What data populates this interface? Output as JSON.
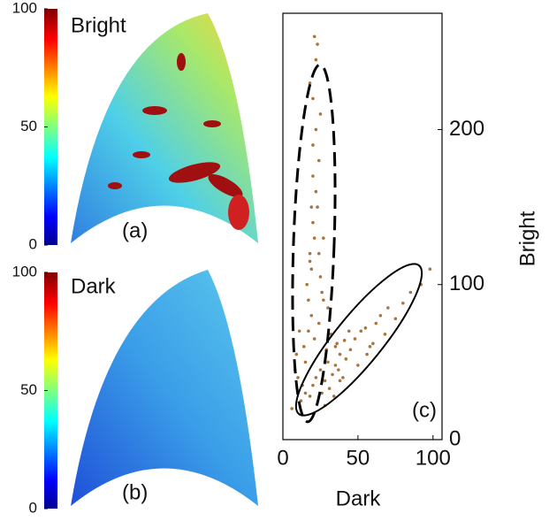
{
  "chart_data": [
    {
      "type": "heatmap",
      "label": "Bright",
      "panel_label": "(a)",
      "clim": [
        0,
        100
      ],
      "cticks": [
        0,
        50,
        100
      ]
    },
    {
      "type": "heatmap",
      "label": "Dark",
      "panel_label": "(b)",
      "clim": [
        0,
        100
      ],
      "cticks": [
        0,
        50,
        100
      ]
    },
    {
      "type": "scatter",
      "panel_label": "(c)",
      "xlabel": "Dark",
      "ylabel": "Bright",
      "color": "#a8753f",
      "xlim": [
        0,
        106
      ],
      "ylim": [
        0,
        275
      ],
      "xticks": [
        0,
        50,
        100
      ],
      "yticks": [
        0,
        100,
        200
      ],
      "x": [
        12,
        15,
        18,
        20,
        22,
        25,
        28,
        30,
        33,
        35,
        38,
        40,
        14,
        17,
        19,
        21,
        24,
        27,
        29,
        32,
        36,
        42,
        45,
        48,
        52,
        55,
        58,
        62,
        65,
        70,
        75,
        80,
        85,
        92,
        98,
        16,
        18,
        20,
        22,
        24,
        19,
        21,
        23,
        17,
        20,
        22,
        25,
        18,
        20,
        23,
        21,
        19,
        24,
        26,
        15,
        13,
        10,
        8,
        30,
        35,
        44,
        50,
        56,
        60,
        68,
        26,
        28,
        31,
        34,
        37,
        22,
        20,
        18,
        25,
        27,
        6,
        9,
        11,
        38,
        41
      ],
      "y": [
        25,
        30,
        28,
        35,
        40,
        45,
        38,
        50,
        42,
        48,
        55,
        40,
        60,
        70,
        80,
        65,
        75,
        90,
        58,
        68,
        62,
        52,
        58,
        65,
        70,
        72,
        60,
        75,
        80,
        85,
        78,
        88,
        95,
        100,
        110,
        100,
        120,
        140,
        160,
        180,
        110,
        130,
        150,
        90,
        170,
        200,
        210,
        230,
        190,
        255,
        260,
        150,
        120,
        95,
        50,
        35,
        40,
        45,
        85,
        60,
        70,
        48,
        55,
        62,
        68,
        30,
        22,
        33,
        28,
        45,
        245,
        220,
        115,
        105,
        130,
        20,
        55,
        70,
        38,
        64
      ]
    }
  ]
}
